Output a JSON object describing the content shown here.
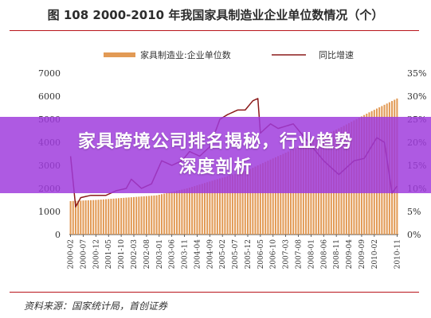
{
  "figure_title": "图 108 2000-2010 年我国家具制造业企业单位数情况（个）",
  "source_note": "资料来源：国家统计局，首创证券",
  "banner": {
    "line1": "家具跨境公司排名揭秘，行业趋势",
    "line2": "深度剖析",
    "color": "#9e3adc"
  },
  "chart_data": {
    "type": "bar+line",
    "title": "图 108 2000-2010 年我国家具制造业企业单位数情况（个）",
    "legend": [
      "家具制造业:企业单位数",
      "同比增速"
    ],
    "legend_position": "top-center",
    "bar_color": "#e29a55",
    "line_color": "#8b1a1a",
    "left_axis": {
      "ticks": [
        "0",
        "1000",
        "2000",
        "3000",
        "4000",
        "5000",
        "6000",
        "7000"
      ],
      "ylim": [
        0,
        7000
      ]
    },
    "right_axis": {
      "ticks": [
        "0%",
        "5%",
        "10%",
        "15%",
        "20%",
        "25%",
        "30%",
        "35%"
      ],
      "ylim": [
        0,
        35
      ]
    },
    "x_tick_labels": [
      "2000-02",
      "2000-07",
      "2000-12",
      "2001-05",
      "2001-10",
      "2002-03",
      "2002-08",
      "2003-01",
      "2003-06",
      "2003-11",
      "2004-04",
      "2004-09",
      "2005-02",
      "2005-07",
      "2005-12",
      "2006-05",
      "2006-10",
      "2007-03",
      "2007-08",
      "2008-01",
      "2008-06",
      "2008-11",
      "2009-04",
      "2009-09",
      "2010-02",
      "2010-11"
    ],
    "x_start": "2000-02",
    "x_end": "2010-11",
    "series": [
      {
        "name": "家具制造业:企业单位数",
        "type": "bar",
        "axis": "left",
        "anchors": [
          [
            "2000-02",
            1450
          ],
          [
            "2000-12",
            1500
          ],
          [
            "2001-12",
            1600
          ],
          [
            "2002-12",
            1700
          ],
          [
            "2003-12",
            2000
          ],
          [
            "2004-12",
            2400
          ],
          [
            "2005-12",
            2800
          ],
          [
            "2006-12",
            3400
          ],
          [
            "2007-12",
            4000
          ],
          [
            "2008-12",
            4600
          ],
          [
            "2009-12",
            5300
          ],
          [
            "2010-11",
            5900
          ]
        ]
      },
      {
        "name": "同比增速",
        "type": "line",
        "axis": "right",
        "anchors": [
          [
            "2000-02",
            17
          ],
          [
            "2000-04",
            6
          ],
          [
            "2000-06",
            8
          ],
          [
            "2000-10",
            8.5
          ],
          [
            "2001-04",
            8.5
          ],
          [
            "2001-08",
            9.5
          ],
          [
            "2001-12",
            10
          ],
          [
            "2002-02",
            12
          ],
          [
            "2002-06",
            10
          ],
          [
            "2002-10",
            11
          ],
          [
            "2003-02",
            16
          ],
          [
            "2003-06",
            15
          ],
          [
            "2003-10",
            16
          ],
          [
            "2004-01",
            18
          ],
          [
            "2004-05",
            17
          ],
          [
            "2004-09",
            19
          ],
          [
            "2005-01",
            25
          ],
          [
            "2005-04",
            26
          ],
          [
            "2005-08",
            27
          ],
          [
            "2005-11",
            27
          ],
          [
            "2006-02",
            29
          ],
          [
            "2006-04",
            29.5
          ],
          [
            "2006-05",
            22
          ],
          [
            "2006-09",
            24
          ],
          [
            "2006-12",
            23
          ],
          [
            "2007-06",
            24
          ],
          [
            "2007-12",
            20
          ],
          [
            "2008-06",
            16
          ],
          [
            "2008-12",
            13
          ],
          [
            "2009-06",
            16
          ],
          [
            "2009-10",
            16.5
          ],
          [
            "2010-03",
            21
          ],
          [
            "2010-06",
            20
          ],
          [
            "2010-09",
            9
          ],
          [
            "2010-11",
            10.5
          ]
        ]
      }
    ]
  }
}
